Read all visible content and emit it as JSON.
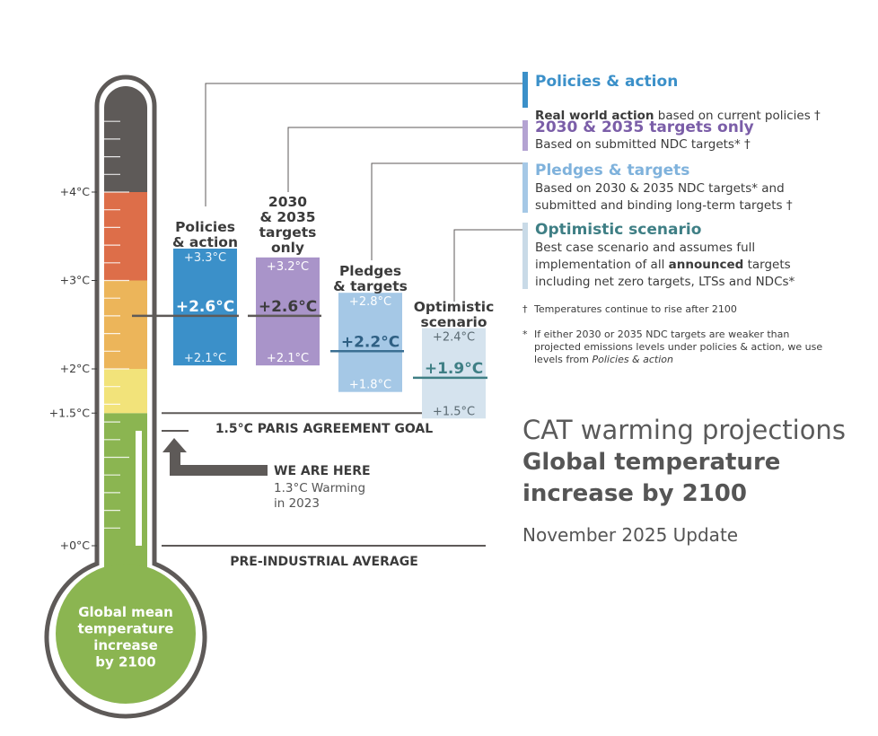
{
  "chart_data": {
    "type": "thermometer-range",
    "title": "CAT warming projections",
    "subtitle": "Global temperature increase by 2100",
    "date_line": "November 2025 Update",
    "axis_ticks": [
      {
        "value": 0,
        "label": "+0°C"
      },
      {
        "value": 1.5,
        "label": "+1.5°C"
      },
      {
        "value": 2,
        "label": "+2°C"
      },
      {
        "value": 3,
        "label": "+3°C"
      },
      {
        "value": 4,
        "label": "+4°C"
      }
    ],
    "bulb_label": "Global mean temperature increase by 2100",
    "current_warming": 1.3,
    "we_are_here": {
      "heading": "WE ARE HERE",
      "detail": "1.3°C Warming\nin 2023"
    },
    "reference_lines": [
      {
        "value": 1.5,
        "label": "1.5°C PARIS AGREEMENT GOAL"
      },
      {
        "value": 0,
        "label": "PRE-INDUSTRIAL AVERAGE"
      }
    ],
    "series": [
      {
        "name": "Policies & action",
        "low": 2.1,
        "mid": 2.6,
        "high": 3.3,
        "low_label": "+2.1°C",
        "mid_label": "+2.6°C",
        "high_label": "+3.3°C",
        "color": "#3b90c9"
      },
      {
        "name": "2030 & 2035 targets only",
        "low": 2.1,
        "mid": 2.6,
        "high": 3.2,
        "low_label": "+2.1°C",
        "mid_label": "+2.6°C",
        "high_label": "+3.2°C",
        "color": "#a994c9"
      },
      {
        "name": "Pledges & targets",
        "low": 1.8,
        "mid": 2.2,
        "high": 2.8,
        "low_label": "+1.8°C",
        "mid_label": "+2.2°C",
        "high_label": "+2.8°C",
        "color": "#a5c8e6"
      },
      {
        "name": "Optimistic scenario",
        "low": 1.5,
        "mid": 1.9,
        "high": 2.4,
        "low_label": "+1.5°C",
        "mid_label": "+1.9°C",
        "high_label": "+2.4°C",
        "color": "#d5e3ee"
      }
    ],
    "band_colors": [
      {
        "from": 0,
        "to": 1.5,
        "color": "#8bb551"
      },
      {
        "from": 1.5,
        "to": 2,
        "color": "#f2e37a"
      },
      {
        "from": 2,
        "to": 3,
        "color": "#ecb55a"
      },
      {
        "from": 3,
        "to": 4,
        "color": "#dd6e49"
      },
      {
        "from": 4,
        "to": 5,
        "color": "#5e5a58"
      }
    ]
  },
  "legend": [
    {
      "title": "Policies & action",
      "title_color": "#3b90c9",
      "block_color": "#3b90c9",
      "desc_bold": "Real world action",
      "desc_rest": " based on current policies †",
      "desc": ""
    },
    {
      "title": "2030 & 2035 targets only",
      "title_color": "#7b5ea8",
      "block_color": "#b4a3d2",
      "desc_bold": "",
      "desc_rest": "",
      "desc": "Based on submitted NDC targets* †"
    },
    {
      "title": "Pledges & targets",
      "title_color": "#7fb2dc",
      "block_color": "#a5c8e6",
      "desc_bold": "",
      "desc_rest": "",
      "desc": "Based on 2030 & 2035 NDC targets* and\nsubmitted and binding long-term targets †"
    },
    {
      "title": "Optimistic scenario",
      "title_color": "#3f7f85",
      "block_color": "#c9dae7",
      "desc_a": "Best case scenario and assumes full\nimplementation of all ",
      "desc_bold": "announced",
      "desc_b": " targets\nincluding net zero targets, LTSs and NDCs*"
    }
  ],
  "notes": [
    {
      "mark": "†",
      "text": "Temperatures continue to rise after 2100"
    },
    {
      "mark": "*",
      "text": "If either 2030 or 2035 NDC targets are weaker than projected emissions levels under policies & action, we use levels from ",
      "text_italic": "Policies & action"
    }
  ]
}
